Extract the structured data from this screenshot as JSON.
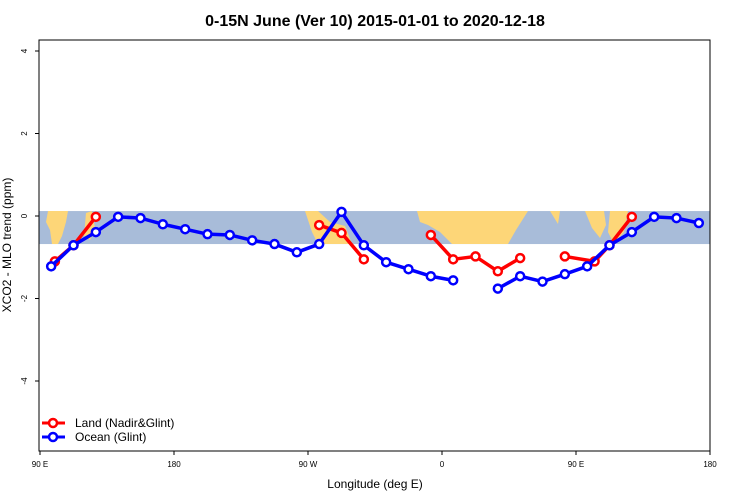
{
  "chart_data": {
    "type": "line",
    "title": "0-15N June (Ver 10)   2015-01-01 to 2020-12-18",
    "xlabel": "Longitude (deg E)",
    "ylabel": "XCO2 - MLO trend (ppm)",
    "x_ticks": [
      {
        "lon": 90,
        "label": "90 E"
      },
      {
        "lon": 180,
        "label": "180"
      },
      {
        "lon": -90,
        "label": "90 W"
      },
      {
        "lon": 0,
        "label": "0"
      },
      {
        "lon": 90,
        "label": "90 E"
      },
      {
        "lon": 180,
        "label": "180"
      }
    ],
    "xlim_lon": [
      90,
      180
    ],
    "x_axis_note": "axis spans 90E eastward across 180 around to 180 again (450 degrees)",
    "y_ticks": [
      4,
      2,
      0,
      -2,
      -4
    ],
    "ylim": [
      -5.8,
      4.25
    ],
    "background": {
      "map_band_lat": "0-15N",
      "ocean_color": "#a8bcd9",
      "land_color": "#fdd678",
      "band_y_range": [
        -0.68,
        0.12
      ]
    },
    "legend_position": "bottom-left",
    "series": [
      {
        "name": "Land (Nadir&Glint)",
        "color": "#ff0000",
        "segments": [
          [
            [
              100,
              -1.1
            ],
            [
              112.5,
              -0.71
            ],
            [
              127.5,
              -0.02
            ]
          ],
          [
            [
              -82.5,
              -0.22
            ],
            [
              -67.5,
              -0.41
            ],
            [
              -52.5,
              -1.05
            ]
          ],
          [
            [
              -7.5,
              -0.46
            ],
            [
              7.5,
              -1.05
            ],
            [
              22.5,
              -0.98
            ],
            [
              37.5,
              -1.34
            ],
            [
              52.5,
              -1.02
            ]
          ],
          [
            [
              82.5,
              -0.98
            ],
            [
              102.5,
              -1.1
            ],
            [
              112.5,
              -0.71
            ],
            [
              127.5,
              -0.02
            ]
          ]
        ]
      },
      {
        "name": "Ocean (Glint)",
        "color": "#0000ff",
        "segments": [
          [
            [
              97.5,
              -1.22
            ],
            [
              112.5,
              -0.71
            ],
            [
              127.5,
              -0.39
            ],
            [
              142.5,
              -0.02
            ],
            [
              157.5,
              -0.05
            ],
            [
              172.5,
              -0.2
            ],
            [
              -172.5,
              -0.32
            ],
            [
              -157.5,
              -0.44
            ],
            [
              -142.5,
              -0.46
            ],
            [
              -127.5,
              -0.59
            ],
            [
              -112.5,
              -0.68
            ],
            [
              -97.5,
              -0.88
            ],
            [
              -82.5,
              -0.68
            ],
            [
              -67.5,
              0.1
            ],
            [
              -52.5,
              -0.71
            ],
            [
              -37.5,
              -1.12
            ],
            [
              -22.5,
              -1.29
            ],
            [
              -7.5,
              -1.46
            ],
            [
              7.5,
              -1.56
            ]
          ],
          [
            [
              37.5,
              -1.76
            ],
            [
              52.5,
              -1.46
            ],
            [
              67.5,
              -1.59
            ],
            [
              82.5,
              -1.41
            ],
            [
              97.5,
              -1.22
            ],
            [
              112.5,
              -0.71
            ],
            [
              127.5,
              -0.39
            ],
            [
              142.5,
              -0.02
            ],
            [
              157.5,
              -0.05
            ],
            [
              172.5,
              -0.17
            ]
          ]
        ]
      }
    ]
  }
}
